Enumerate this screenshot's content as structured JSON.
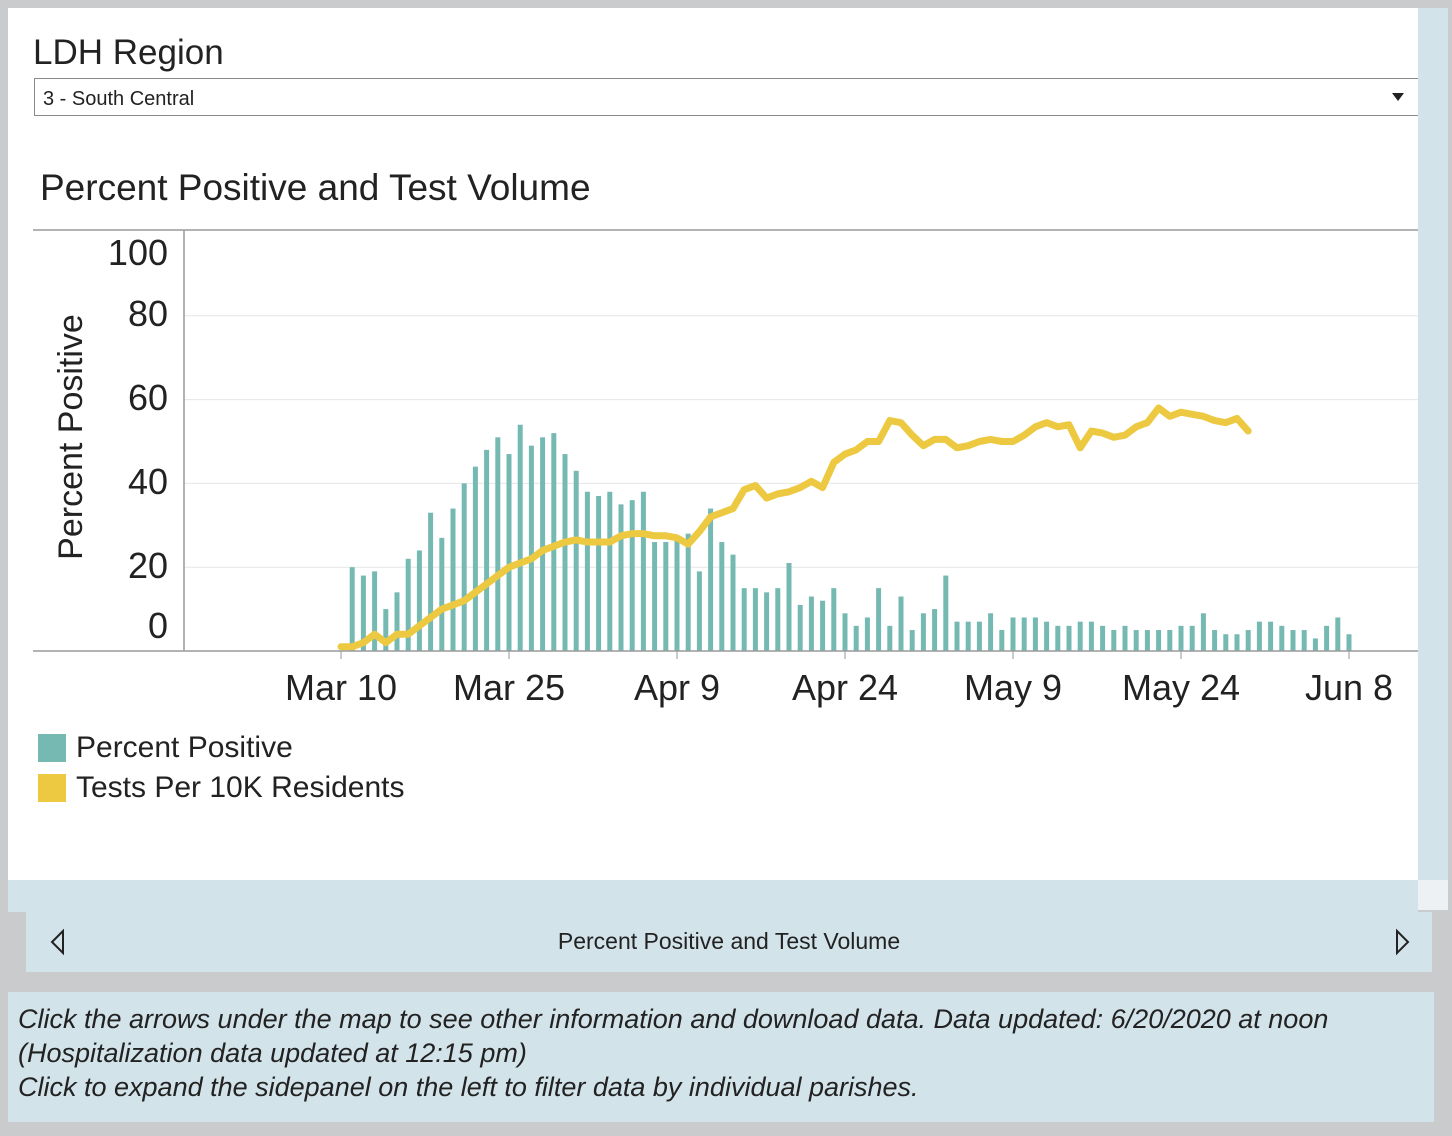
{
  "filter": {
    "label": "LDH Region",
    "selected": "3 - South Central"
  },
  "chart_data": {
    "type": "bar+line",
    "title": "Percent Positive and Test Volume",
    "ylabel": "Percent Positive",
    "ylim": [
      0,
      100
    ],
    "yticks": [
      "100",
      "80",
      "60",
      "40",
      "20",
      "0"
    ],
    "xtick_labels": [
      "Mar 10",
      "Mar 25",
      "Apr 9",
      "Apr 24",
      "May 9",
      "May 24",
      "Jun 8"
    ],
    "x_start": "Mar 10",
    "series": [
      {
        "name": "Percent Positive",
        "type": "bar",
        "color": "#76b8b2",
        "values": [
          20,
          18,
          19,
          10,
          14,
          22,
          24,
          33,
          27,
          34,
          40,
          44,
          48,
          51,
          47,
          54,
          49,
          51,
          52,
          47,
          43,
          38,
          37,
          38,
          35,
          36,
          38,
          26,
          26,
          27,
          28,
          19,
          34,
          26,
          23,
          15,
          15,
          14,
          15,
          21,
          11,
          13,
          12,
          15,
          9,
          6,
          8,
          15,
          6,
          13,
          5,
          9,
          10,
          18,
          7,
          7,
          7,
          9,
          5,
          8,
          8,
          8,
          7,
          6,
          6,
          7,
          7,
          6,
          5,
          6,
          5,
          5,
          5,
          5,
          6,
          6,
          9,
          5,
          4,
          4,
          5,
          7,
          7,
          6,
          5,
          5,
          3,
          6,
          8,
          4
        ]
      },
      {
        "name": "Tests Per 10K Residents",
        "type": "line",
        "color": "#ecc940",
        "values": [
          1,
          1,
          2,
          4,
          2,
          4,
          4,
          6,
          8,
          10,
          11,
          12,
          14,
          16,
          18,
          20,
          21,
          22,
          24,
          25,
          26,
          26.5,
          26,
          26,
          26,
          27.5,
          28,
          28,
          27.5,
          27.5,
          27,
          25.5,
          28.5,
          32,
          33,
          34,
          38.5,
          39.5,
          36.5,
          37.5,
          38,
          39,
          40.5,
          39,
          45,
          47,
          48,
          50,
          50,
          55,
          54.5,
          51.5,
          49,
          50.5,
          50.5,
          48.5,
          49,
          50,
          50.5,
          50,
          50,
          51.5,
          53.5,
          54.5,
          53.5,
          54,
          48.5,
          52.5,
          52,
          51,
          51.5,
          53.5,
          54.5,
          58,
          56,
          57,
          56.5,
          56,
          55,
          54.5,
          55.5,
          52.5
        ]
      }
    ],
    "legend": "bottom-left",
    "grid": true
  },
  "nav": {
    "title": "Percent Positive and Test Volume",
    "prev_icon": "triangle-left-icon",
    "next_icon": "triangle-right-icon"
  },
  "info": {
    "line1": "Click the arrows under the map to see other information and download data. Data updated: 6/20/2020 at noon",
    "line2": "(Hospitalization data updated at 12:15 pm)",
    "line3": "Click to expand the sidepanel on the left to filter data by individual parishes."
  }
}
